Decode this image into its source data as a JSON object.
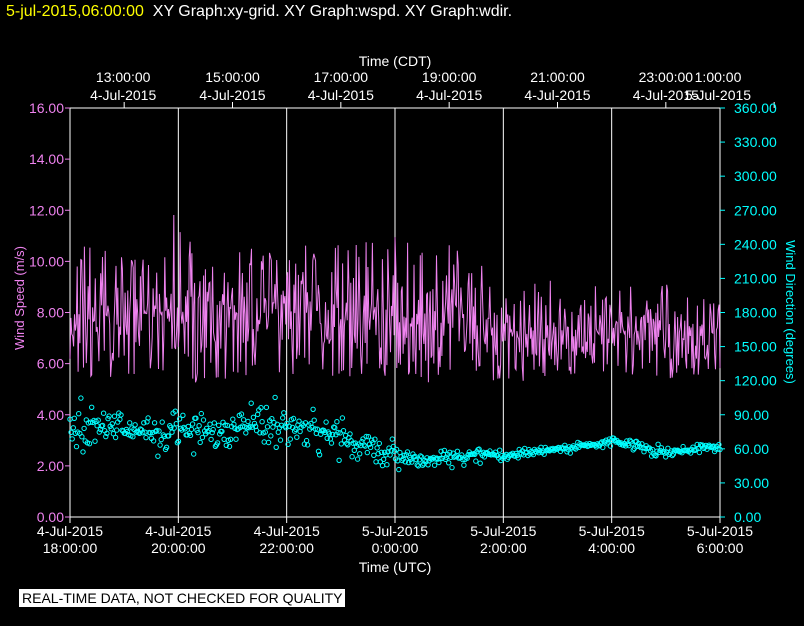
{
  "header": {
    "timestamp": "5-jul-2015,06:00:00",
    "graphs": "XY Graph:xy-grid.  XY Graph:wspd.  XY Graph:wdir."
  },
  "footer": {
    "note": "REAL-TIME DATA, NOT CHECKED FOR QUALITY"
  },
  "colors": {
    "wspd": "#ee82ee",
    "wdir": "#00ffff",
    "grid": "#ffffff",
    "title_date": "#ffff00"
  },
  "chart_data": {
    "type": "line",
    "top_axis": {
      "label": "Time (CDT)",
      "ticks": [
        {
          "time": "13:00:00",
          "date": "4-Jul-2015"
        },
        {
          "time": "15:00:00",
          "date": "4-Jul-2015"
        },
        {
          "time": "17:00:00",
          "date": "4-Jul-2015"
        },
        {
          "time": "19:00:00",
          "date": "4-Jul-2015"
        },
        {
          "time": "21:00:00",
          "date": "4-Jul-2015"
        },
        {
          "time": "23:00:00",
          "date": "4-Jul-2015"
        },
        {
          "time": "1:00:00",
          "date": "5-Jul-2015"
        }
      ]
    },
    "bottom_axis": {
      "label": "Time (UTC)",
      "range": [
        "2015-07-04T18:00:00Z",
        "2015-07-05T06:00:00Z"
      ],
      "ticks": [
        {
          "date": "4-Jul-2015",
          "time": "18:00:00"
        },
        {
          "date": "4-Jul-2015",
          "time": "20:00:00"
        },
        {
          "date": "4-Jul-2015",
          "time": "22:00:00"
        },
        {
          "date": "5-Jul-2015",
          "time": "0:00:00"
        },
        {
          "date": "5-Jul-2015",
          "time": "2:00:00"
        },
        {
          "date": "5-Jul-2015",
          "time": "4:00:00"
        },
        {
          "date": "5-Jul-2015",
          "time": "6:00:00"
        }
      ]
    },
    "left_axis": {
      "label": "Wind Speed (m/s)",
      "ylim": [
        0,
        16
      ],
      "ticks": [
        "0.00",
        "2.00",
        "4.00",
        "6.00",
        "8.00",
        "10.00",
        "12.00",
        "14.00",
        "16.00"
      ]
    },
    "right_axis": {
      "label": "Wind Direction (degrees)",
      "ylim": [
        0,
        360
      ],
      "ticks": [
        "0.00",
        "30.00",
        "60.00",
        "90.00",
        "120.00",
        "150.00",
        "180.00",
        "210.00",
        "240.00",
        "270.00",
        "300.00",
        "330.00",
        "360.00"
      ]
    },
    "grid": "vertical",
    "series": [
      {
        "type": "line",
        "axis": "left",
        "color": "#ee82ee",
        "x": [
          "2015-07-04T18:00:00Z",
          "2015-07-04T18:30:00Z",
          "2015-07-04T19:00:00Z",
          "2015-07-04T19:30:00Z",
          "2015-07-04T20:00:00Z",
          "2015-07-04T20:30:00Z",
          "2015-07-04T21:00:00Z",
          "2015-07-04T21:30:00Z",
          "2015-07-04T22:00:00Z",
          "2015-07-04T22:30:00Z",
          "2015-07-04T23:00:00Z",
          "2015-07-04T23:30:00Z",
          "2015-07-05T00:00:00Z",
          "2015-07-05T00:30:00Z",
          "2015-07-05T01:00:00Z",
          "2015-07-05T01:30:00Z",
          "2015-07-05T02:00:00Z",
          "2015-07-05T02:30:00Z",
          "2015-07-05T03:00:00Z",
          "2015-07-05T03:30:00Z",
          "2015-07-05T04:00:00Z",
          "2015-07-05T04:30:00Z",
          "2015-07-05T05:00:00Z",
          "2015-07-05T05:30:00Z",
          "2015-07-05T06:00:00Z"
        ],
        "mean": [
          7.5,
          7.8,
          7.9,
          8.0,
          7.6,
          7.7,
          8.0,
          7.8,
          7.9,
          8.0,
          8.1,
          7.9,
          7.8,
          8.0,
          7.9,
          7.6,
          7.0,
          6.9,
          7.2,
          7.4,
          7.5,
          7.4,
          7.3,
          7.0,
          7.2
        ],
        "min": [
          5.8,
          5.4,
          5.5,
          5.3,
          5.0,
          5.2,
          5.3,
          5.2,
          5.4,
          5.3,
          5.5,
          5.4,
          5.6,
          5.0,
          5.5,
          5.6,
          5.0,
          5.3,
          5.6,
          5.5,
          5.6,
          5.5,
          5.4,
          5.3,
          5.6
        ],
        "max": [
          10.7,
          10.5,
          10.3,
          10.2,
          12.2,
          10.3,
          10.4,
          10.6,
          10.2,
          10.8,
          10.7,
          10.8,
          11.0,
          10.6,
          10.8,
          10.2,
          8.8,
          9.2,
          9.3,
          9.3,
          9.5,
          8.9,
          9.1,
          8.6,
          9.0
        ]
      },
      {
        "type": "scatter",
        "axis": "right",
        "color": "#00ffff",
        "x": [
          "2015-07-04T18:00:00Z",
          "2015-07-04T18:30:00Z",
          "2015-07-04T19:00:00Z",
          "2015-07-04T19:30:00Z",
          "2015-07-04T20:00:00Z",
          "2015-07-04T20:30:00Z",
          "2015-07-04T21:00:00Z",
          "2015-07-04T21:30:00Z",
          "2015-07-04T22:00:00Z",
          "2015-07-04T22:30:00Z",
          "2015-07-04T23:00:00Z",
          "2015-07-04T23:30:00Z",
          "2015-07-05T00:00:00Z",
          "2015-07-05T00:30:00Z",
          "2015-07-05T01:00:00Z",
          "2015-07-05T01:30:00Z",
          "2015-07-05T02:00:00Z",
          "2015-07-05T02:30:00Z",
          "2015-07-05T03:00:00Z",
          "2015-07-05T03:30:00Z",
          "2015-07-05T04:00:00Z",
          "2015-07-05T04:30:00Z",
          "2015-07-05T05:00:00Z",
          "2015-07-05T05:30:00Z",
          "2015-07-05T06:00:00Z"
        ],
        "mean": [
          75,
          80,
          76,
          74,
          80,
          74,
          76,
          82,
          80,
          78,
          72,
          62,
          54,
          50,
          52,
          56,
          54,
          56,
          60,
          62,
          67,
          62,
          57,
          59,
          64
        ],
        "min": [
          60,
          65,
          58,
          52,
          60,
          55,
          58,
          65,
          60,
          55,
          52,
          48,
          42,
          40,
          44,
          48,
          50,
          52,
          56,
          58,
          63,
          56,
          52,
          55,
          60
        ],
        "max": [
          110,
          95,
          90,
          88,
          92,
          88,
          90,
          105,
          100,
          95,
          88,
          72,
          65,
          58,
          60,
          62,
          58,
          60,
          63,
          66,
          70,
          66,
          62,
          63,
          68
        ]
      }
    ]
  }
}
